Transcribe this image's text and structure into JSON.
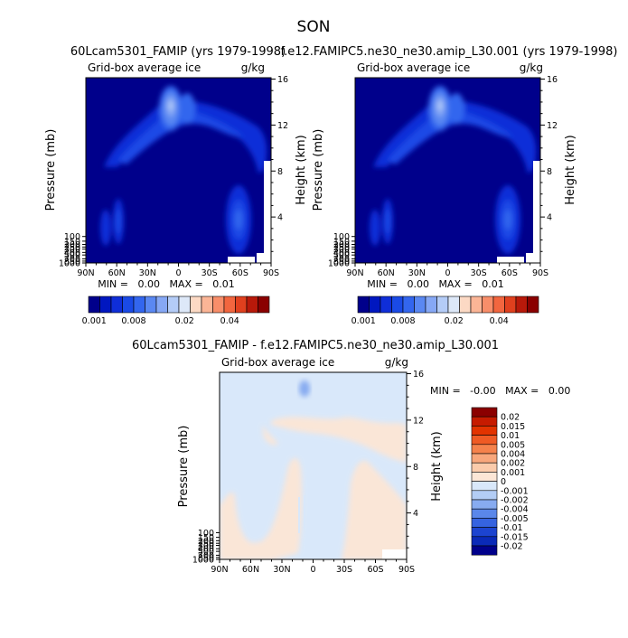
{
  "figure_title": "SON",
  "panels": [
    {
      "title": "60Lcam5301_FAMIP (yrs 1979-1998)",
      "left_label": "Grid-box average ice",
      "right_label": "g/kg",
      "ylabel": "Pressure (mb)",
      "ylabel_right": "Height (km)",
      "stats": "MIN =   0.00   MAX =   0.01",
      "colorbar_labels": [
        "0.001",
        "0.008",
        "0.02",
        "0.04"
      ]
    },
    {
      "title": "f.e12.FAMIPC5.ne30_ne30.amip_L30.001 (yrs 1979-1998)",
      "left_label": "Grid-box average ice",
      "right_label": "g/kg",
      "ylabel": "Pressure (mb)",
      "ylabel_right": "Height (km)",
      "stats": "MIN =   0.00   MAX =   0.01",
      "colorbar_labels": [
        "0.001",
        "0.008",
        "0.02",
        "0.04"
      ]
    },
    {
      "title": "60Lcam5301_FAMIP - f.e12.FAMIPC5.ne30_ne30.amip_L30.001",
      "left_label": "Grid-box average ice",
      "right_label": "g/kg",
      "ylabel": "Pressure (mb)",
      "ylabel_right": "Height (km)",
      "stats": "MIN =   -0.00   MAX =   0.00",
      "colorbar_labels": [
        "0.02",
        "0.015",
        "0.01",
        "0.005",
        "0.004",
        "0.002",
        "0.001",
        "0",
        "-0.001",
        "-0.002",
        "-0.004",
        "-0.005",
        "-0.01",
        "-0.015",
        "-0.02"
      ]
    }
  ],
  "colors": {
    "abs_scale": [
      "#00008b",
      "#0017c0",
      "#0f2ed8",
      "#1a4ae6",
      "#3366ee",
      "#5a88f2",
      "#86a8f5",
      "#b4ccf7",
      "#dde8f8",
      "#fcd9c4",
      "#fbb596",
      "#f88e6a",
      "#f2663f",
      "#e0401e",
      "#b8190a",
      "#8a0000"
    ],
    "diff_scale": [
      "#8b0000",
      "#c61b00",
      "#e23300",
      "#ef5a24",
      "#f5824c",
      "#f8a77c",
      "#fbcbab",
      "#fce6d6",
      "#d9e8fa",
      "#b3cdf5",
      "#87abf0",
      "#5a87ea",
      "#3563e0",
      "#1c44d0",
      "#0a2ab8",
      "#00008b"
    ]
  },
  "chart_data": [
    {
      "type": "heatmap",
      "title": "60Lcam5301_FAMIP (yrs 1979-1998)",
      "xlabel": "",
      "ylabel": "Pressure (mb)",
      "x_ticks": [
        "90N",
        "60N",
        "30N",
        "0",
        "30S",
        "60S",
        "90S"
      ],
      "y_ticks_pressure": [
        100,
        150,
        200,
        250,
        300,
        400,
        500,
        700,
        850,
        1000
      ],
      "y_ticks_height_km": [
        16,
        12,
        8,
        4
      ],
      "ylim": [
        1000,
        100
      ],
      "levels": [
        0.001,
        0.002,
        0.004,
        0.006,
        0.008,
        0.01,
        0.012,
        0.015,
        0.02,
        0.025,
        0.03,
        0.035,
        0.04,
        0.045,
        0.05
      ],
      "min": 0.0,
      "max": 0.01
    },
    {
      "type": "heatmap",
      "title": "f.e12.FAMIPC5.ne30_ne30.amip_L30.001 (yrs 1979-1998)",
      "xlabel": "",
      "ylabel": "Pressure (mb)",
      "x_ticks": [
        "90N",
        "60N",
        "30N",
        "0",
        "30S",
        "60S",
        "90S"
      ],
      "y_ticks_pressure": [
        100,
        150,
        200,
        250,
        300,
        400,
        500,
        700,
        850,
        1000
      ],
      "y_ticks_height_km": [
        16,
        12,
        8,
        4
      ],
      "ylim": [
        1000,
        100
      ],
      "levels": [
        0.001,
        0.002,
        0.004,
        0.006,
        0.008,
        0.01,
        0.012,
        0.015,
        0.02,
        0.025,
        0.03,
        0.035,
        0.04,
        0.045,
        0.05
      ],
      "min": 0.0,
      "max": 0.01
    },
    {
      "type": "heatmap",
      "title": "60Lcam5301_FAMIP - f.e12.FAMIPC5.ne30_ne30.amip_L30.001",
      "xlabel": "",
      "ylabel": "Pressure (mb)",
      "x_ticks": [
        "90N",
        "60N",
        "30N",
        "0",
        "30S",
        "60S",
        "90S"
      ],
      "y_ticks_pressure": [
        100,
        150,
        200,
        250,
        300,
        400,
        500,
        700,
        850,
        1000
      ],
      "y_ticks_height_km": [
        16,
        12,
        8,
        4
      ],
      "ylim": [
        1000,
        100
      ],
      "levels": [
        -0.02,
        -0.015,
        -0.01,
        -0.005,
        -0.004,
        -0.002,
        -0.001,
        0,
        0.001,
        0.002,
        0.004,
        0.005,
        0.01,
        0.015,
        0.02
      ],
      "min": -0.0,
      "max": 0.0
    }
  ]
}
